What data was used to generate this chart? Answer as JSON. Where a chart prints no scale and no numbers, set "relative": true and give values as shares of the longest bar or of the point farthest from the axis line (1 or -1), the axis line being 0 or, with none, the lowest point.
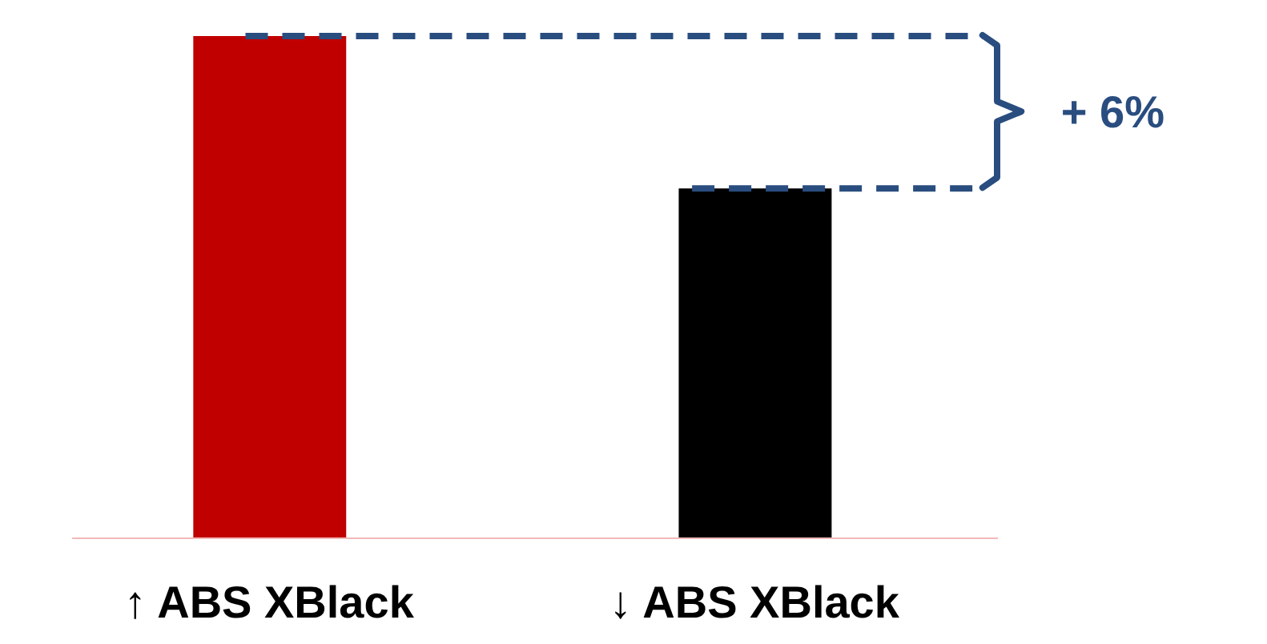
{
  "chart_data": {
    "type": "bar",
    "relative": true,
    "categories": [
      "↑ ABS XBlack",
      "↓ ABS XBlack"
    ],
    "values": [
      1,
      0.697
    ],
    "colors": [
      "#c00000",
      "#000000"
    ],
    "ref_lines": [
      {
        "axis": "y",
        "value": 1,
        "color": "#2a4d80",
        "line_style": "dashed"
      },
      {
        "axis": "y",
        "value": 0.697,
        "color": "#2a4d80",
        "line_style": "dashed"
      }
    ],
    "annotations": [
      "+ 6%"
    ],
    "grid": false
  }
}
